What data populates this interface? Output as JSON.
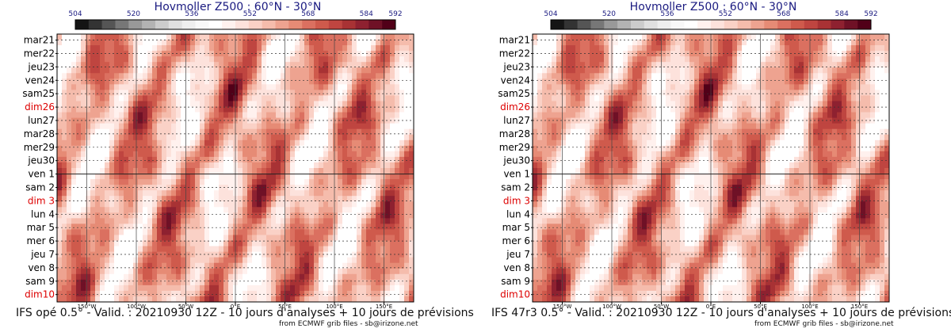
{
  "palette": [
    "#141414",
    "#333333",
    "#555555",
    "#777777",
    "#999999",
    "#b3b3b3",
    "#cccccc",
    "#e0e0e0",
    "#eeeeee",
    "#f8f8f8",
    "#ffffff",
    "#fff1ee",
    "#fde2dc",
    "#fad1c6",
    "#f5bcac",
    "#eea390",
    "#e68b75",
    "#db7060",
    "#cf5a4c",
    "#bf4540",
    "#a83234",
    "#8e2130",
    "#6f1126",
    "#510018"
  ],
  "colorbar": {
    "min": 504,
    "max": 592,
    "tick_labels": [
      "504",
      "520",
      "536",
      "552",
      "568",
      "584",
      "592"
    ],
    "tick_values": [
      504,
      520,
      536,
      552,
      568,
      584,
      592
    ]
  },
  "panels": [
    {
      "title": "Hovmoller Z500 : 60°N - 30°N",
      "footer": "IFS opé 0.5° - Valid. : 20210930 12Z - 10 jours d'analyses + 10 jours de prévisions",
      "credit": "from ECMWF grib files - sb@irizone.net",
      "chart_data": {
        "type": "heatmap",
        "title": "Hovmoller Z500 : 60°N - 30°N",
        "x_tick_labels": [
          "150°W",
          "100°W",
          "50°W",
          "0°E",
          "50°E",
          "100°E",
          "150°E"
        ],
        "x_tick_values": [
          -150,
          -100,
          -50,
          0,
          50,
          100,
          150
        ],
        "x_range": [
          -180,
          180
        ],
        "y_labels": [
          "mar21",
          "mer22",
          "jeu23",
          "ven24",
          "sam25",
          "dim26",
          "lun27",
          "mar28",
          "mer29",
          "jeu30",
          "ven 1",
          "sam 2",
          "dim 3",
          "lun 4",
          "mar 5",
          "mer 6",
          "jeu 7",
          "ven 8",
          "sam 9",
          "dim10"
        ],
        "highlighted_labels": [
          "dim26",
          "dim 3",
          "dim10"
        ],
        "analysis_forecast_boundary": "ven 1",
        "grid": true,
        "z_range": [
          504,
          592
        ],
        "seed": 3
      }
    },
    {
      "title": "Hovmoller Z500 : 60°N - 30°N",
      "footer": "IFS 47r3 0.5° - Valid. : 20210930 12Z - 10 jours d'analyses + 10 jours de prévisions",
      "credit": "from ECMWF grib files - sb@irizone.net",
      "chart_data": {
        "type": "heatmap",
        "title": "Hovmoller Z500 : 60°N - 30°N",
        "x_tick_labels": [
          "150°W",
          "100°W",
          "50°W",
          "0°E",
          "50°E",
          "100°E",
          "150°E"
        ],
        "x_tick_values": [
          -150,
          -100,
          -50,
          0,
          50,
          100,
          150
        ],
        "x_range": [
          -180,
          180
        ],
        "y_labels": [
          "mar21",
          "mer22",
          "jeu23",
          "ven24",
          "sam25",
          "dim26",
          "lun27",
          "mar28",
          "mer29",
          "jeu30",
          "ven 1",
          "sam 2",
          "dim 3",
          "lun 4",
          "mar 5",
          "mer 6",
          "jeu 7",
          "ven 8",
          "sam 9",
          "dim10"
        ],
        "highlighted_labels": [
          "dim26",
          "dim 3",
          "dim10"
        ],
        "analysis_forecast_boundary": "ven 1",
        "grid": true,
        "z_range": [
          504,
          592
        ],
        "seed": 3
      }
    }
  ]
}
